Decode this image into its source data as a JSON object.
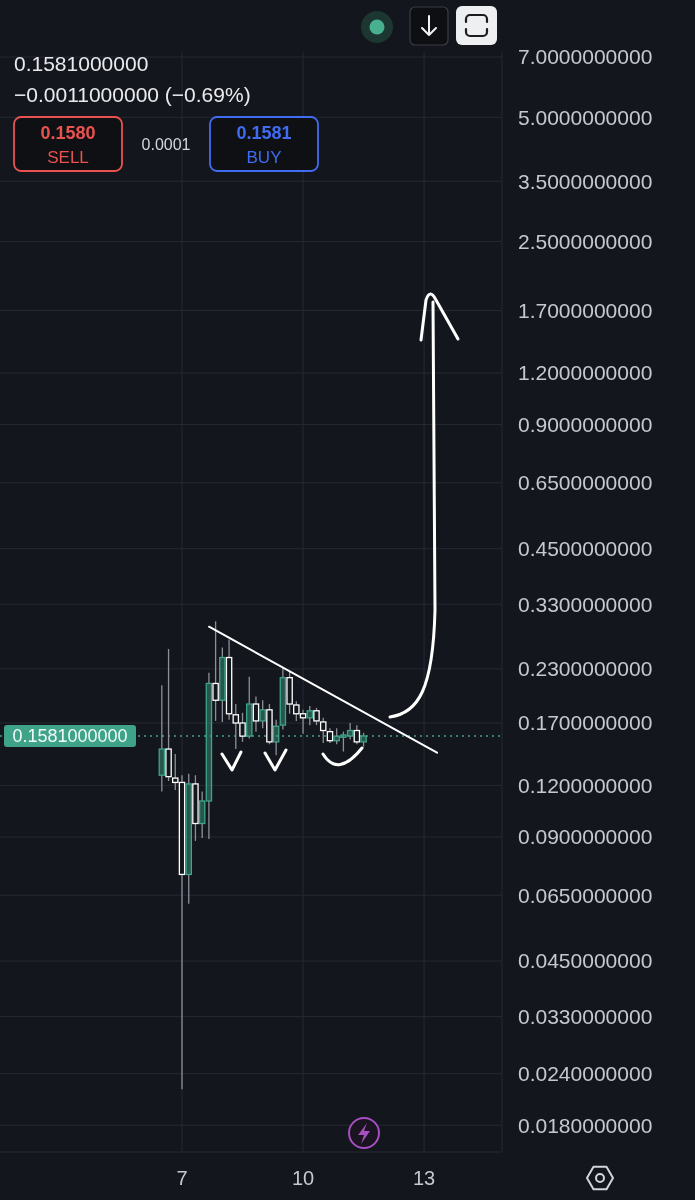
{
  "chart_data": {
    "type": "candlestick",
    "x": [
      6.5,
      6.667,
      6.833,
      7,
      7.167,
      7.333,
      7.5,
      7.667,
      7.833,
      8,
      8.167,
      8.333,
      8.5,
      8.667,
      8.833,
      9,
      9.167,
      9.333,
      9.5,
      9.667,
      9.833,
      10,
      10.167,
      10.333,
      10.5,
      10.667,
      10.833,
      11,
      11.167,
      11.333,
      11.5
    ],
    "ohlc": [
      [
        0.127,
        0.21,
        0.116,
        0.147
      ],
      [
        0.147,
        0.257,
        0.123,
        0.126
      ],
      [
        0.125,
        0.143,
        0.117,
        0.122
      ],
      [
        0.122,
        0.127,
        0.022,
        0.073
      ],
      [
        0.073,
        0.128,
        0.062,
        0.121
      ],
      [
        0.121,
        0.127,
        0.088,
        0.097
      ],
      [
        0.097,
        0.116,
        0.0895,
        0.11
      ],
      [
        0.11,
        0.225,
        0.089,
        0.212
      ],
      [
        0.212,
        0.3,
        0.172,
        0.193
      ],
      [
        0.193,
        0.259,
        0.171,
        0.245
      ],
      [
        0.245,
        0.271,
        0.173,
        0.179
      ],
      [
        0.178,
        0.189,
        0.147,
        0.17
      ],
      [
        0.17,
        0.18,
        0.153,
        0.158
      ],
      [
        0.158,
        0.22,
        0.156,
        0.189
      ],
      [
        0.189,
        0.197,
        0.162,
        0.172
      ],
      [
        0.172,
        0.193,
        0.165,
        0.183
      ],
      [
        0.183,
        0.189,
        0.151,
        0.153
      ],
      [
        0.153,
        0.173,
        0.142,
        0.167
      ],
      [
        0.168,
        0.231,
        0.164,
        0.219
      ],
      [
        0.219,
        0.226,
        0.179,
        0.189
      ],
      [
        0.188,
        0.192,
        0.172,
        0.179
      ],
      [
        0.179,
        0.183,
        0.16,
        0.175
      ],
      [
        0.175,
        0.187,
        0.168,
        0.182
      ],
      [
        0.182,
        0.185,
        0.168,
        0.172
      ],
      [
        0.171,
        0.175,
        0.152,
        0.163
      ],
      [
        0.162,
        0.165,
        0.152,
        0.154
      ],
      [
        0.154,
        0.165,
        0.151,
        0.158
      ],
      [
        0.157,
        0.162,
        0.145,
        0.159
      ],
      [
        0.158,
        0.17,
        0.155,
        0.163
      ],
      [
        0.163,
        0.168,
        0.151,
        0.153
      ],
      [
        0.153,
        0.161,
        0.149,
        0.1581
      ]
    ],
    "colors": [
      "#3fa38a",
      "#ffffff",
      "#ffffff",
      "#ffffff",
      "#3fa38a",
      "#ffffff",
      "#3fa38a",
      "#3fa38a",
      "#ffffff",
      "#3fa38a",
      "#ffffff",
      "#ffffff",
      "#ffffff",
      "#3fa38a",
      "#ffffff",
      "#3fa38a",
      "#ffffff",
      "#3fa38a",
      "#3fa38a",
      "#ffffff",
      "#ffffff",
      "#ffffff",
      "#3fa38a",
      "#ffffff",
      "#ffffff",
      "#ffffff",
      "#3fa38a",
      "#3fa38a",
      "#3fa38a",
      "#ffffff",
      "#3fa38a"
    ],
    "series": [
      {
        "type": "line",
        "color": "#ffffff",
        "x": [
          7.67,
          13.32
        ],
        "values": [
          0.291,
          0.144
        ]
      }
    ],
    "xlim": [
      2.49,
      14.93
    ],
    "xticks": [
      7,
      10,
      13
    ],
    "ylim": [
      0.0155,
      7.2
    ],
    "yticks": [
      {
        "value": 7,
        "label": "7.0000000000"
      },
      {
        "value": 5,
        "label": "5.0000000000"
      },
      {
        "value": 3.5,
        "label": "3.5000000000"
      },
      {
        "value": 2.5,
        "label": "2.5000000000"
      },
      {
        "value": 1.7,
        "label": "1.7000000000"
      },
      {
        "value": 1.2,
        "label": "1.2000000000"
      },
      {
        "value": 0.9,
        "label": "0.9000000000"
      },
      {
        "value": 0.65,
        "label": "0.6500000000"
      },
      {
        "value": 0.45,
        "label": "0.4500000000"
      },
      {
        "value": 0.33,
        "label": "0.3300000000"
      },
      {
        "value": 0.23,
        "label": "0.2300000000"
      },
      {
        "value": 0.17,
        "label": "0.1700000000"
      },
      {
        "value": 0.12,
        "label": "0.1200000000"
      },
      {
        "value": 0.09,
        "label": "0.0900000000"
      },
      {
        "value": 0.065,
        "label": "0.0650000000"
      },
      {
        "value": 0.045,
        "label": "0.0450000000"
      },
      {
        "value": 0.033,
        "label": "0.0330000000"
      },
      {
        "value": 0.024,
        "label": "0.0240000000"
      },
      {
        "value": 0.018,
        "label": "0.0180000000"
      }
    ],
    "log": true,
    "grid": true,
    "ref_lines": [
      {
        "axis": "y",
        "value": 0.1581,
        "label": "0.1581000000",
        "color": "#3fa38a",
        "line_style": "dotted"
      }
    ],
    "annotations": [
      "0.1581000000",
      "−0.0011000000 (−0.69%)",
      "0.1580",
      "SELL",
      "0.0001",
      "0.1581",
      "BUY"
    ]
  }
}
